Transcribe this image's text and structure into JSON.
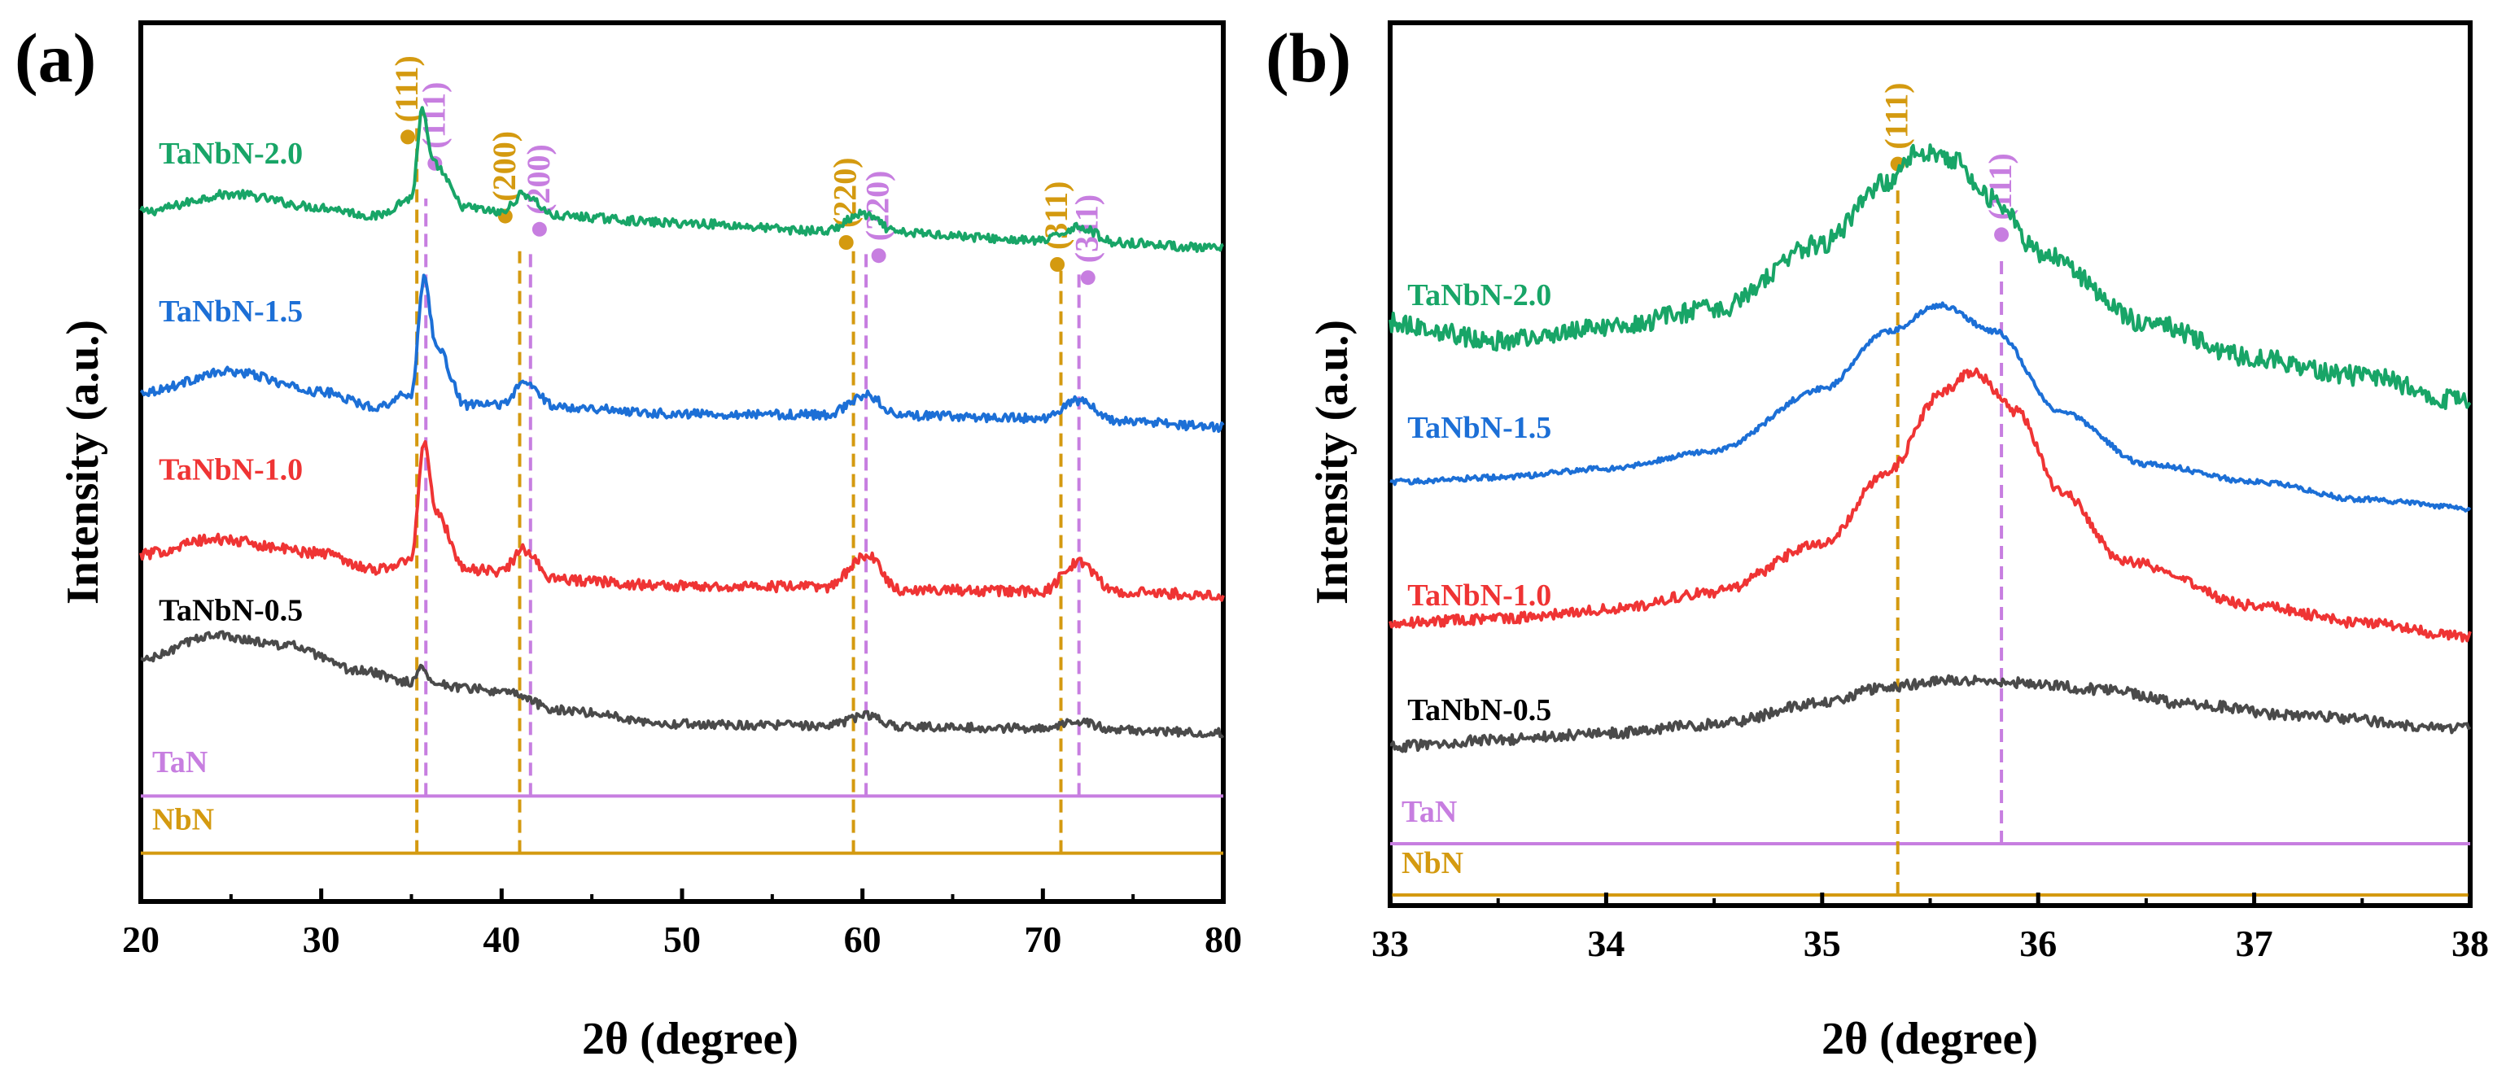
{
  "colors": {
    "green": "#18a567",
    "blue": "#1c6fd6",
    "red": "#ef3434",
    "gray": "#4a4a4a",
    "tan": "#d49a10",
    "violet": "#c77ee0",
    "axis": "#000000"
  },
  "chart_data": [
    {
      "type": "line",
      "panel_label": "(a)",
      "xlabel": "2θ (degree)",
      "ylabel": "Intensity (a.u.)",
      "xlim": [
        20,
        80
      ],
      "xticks": [
        20,
        30,
        40,
        50,
        60,
        70,
        80
      ],
      "xtick_labels": [
        "20",
        "30",
        "40",
        "50",
        "60",
        "70",
        "80"
      ],
      "ylim": [
        0,
        100
      ],
      "series": [
        {
          "name": "TaNbN-2.0",
          "color": "green",
          "baseline": 80,
          "offset": 2.8,
          "noise": 0.5,
          "label_x": 21,
          "label_y": 84,
          "points": [
            [
              20,
              78.5
            ],
            [
              25,
              80.5
            ],
            [
              30,
              79
            ],
            [
              33,
              78
            ],
            [
              35,
              80
            ],
            [
              35.6,
              90
            ],
            [
              36.2,
              84
            ],
            [
              38,
              79
            ],
            [
              40,
              78.4
            ],
            [
              41.2,
              80.5
            ],
            [
              43,
              78
            ],
            [
              50,
              77.2
            ],
            [
              58,
              76.3
            ],
            [
              60,
              78.2
            ],
            [
              62,
              76.1
            ],
            [
              70,
              75.2
            ],
            [
              72,
              76.8
            ],
            [
              74,
              75
            ],
            [
              80,
              74.3
            ]
          ]
        },
        {
          "name": "TaNbN-1.5",
          "color": "blue",
          "baseline": 61,
          "offset": 2.6,
          "noise": 0.5,
          "label_x": 21,
          "label_y": 66,
          "points": [
            [
              20,
              58
            ],
            [
              25,
              60.3
            ],
            [
              30,
              58
            ],
            [
              33,
              56.3
            ],
            [
              35,
              57.8
            ],
            [
              35.7,
              71
            ],
            [
              36.4,
              63
            ],
            [
              38,
              56.5
            ],
            [
              40,
              56.6
            ],
            [
              41.3,
              59
            ],
            [
              43,
              56.3
            ],
            [
              50,
              55.5
            ],
            [
              58,
              55.4
            ],
            [
              60.3,
              57.6
            ],
            [
              62,
              55.3
            ],
            [
              70,
              55
            ],
            [
              72,
              57
            ],
            [
              74,
              54.7
            ],
            [
              80,
              54
            ]
          ]
        },
        {
          "name": "TaNbN-1.0",
          "color": "red",
          "baseline": 40,
          "offset": 2.4,
          "noise": 0.6,
          "label_x": 21,
          "label_y": 48,
          "points": [
            [
              20,
              39.5
            ],
            [
              24,
              41.2
            ],
            [
              30,
              39.7
            ],
            [
              33,
              37.8
            ],
            [
              35,
              38.8
            ],
            [
              35.7,
              52.5
            ],
            [
              36.4,
              44
            ],
            [
              38,
              37.8
            ],
            [
              40,
              37.6
            ],
            [
              41.2,
              40
            ],
            [
              43,
              36.6
            ],
            [
              50,
              35.9
            ],
            [
              58,
              35.8
            ],
            [
              60.3,
              39.3
            ],
            [
              62,
              35.5
            ],
            [
              70,
              35.3
            ],
            [
              72,
              38.6
            ],
            [
              74,
              35.2
            ],
            [
              80,
              34.9
            ]
          ]
        },
        {
          "name": "TaNbN-0.5",
          "color": "gray",
          "baseline": 22,
          "offset": 2.0,
          "noise": 0.5,
          "label_x": 21,
          "label_y": 32,
          "points": [
            [
              20,
              27.5
            ],
            [
              24,
              30.3
            ],
            [
              28,
              29.2
            ],
            [
              32,
              26.3
            ],
            [
              35,
              25
            ],
            [
              35.6,
              26.6
            ],
            [
              36.3,
              24.8
            ],
            [
              38,
              24.3
            ],
            [
              40.5,
              23.7
            ],
            [
              43,
              21.8
            ],
            [
              50,
              20.2
            ],
            [
              58,
              20
            ],
            [
              60.3,
              21.2
            ],
            [
              62,
              19.9
            ],
            [
              70,
              19.7
            ],
            [
              72,
              20.5
            ],
            [
              74,
              19.5
            ],
            [
              80,
              19.2
            ]
          ]
        }
      ],
      "reference_lines": [
        {
          "name": "TaN",
          "color": "violet",
          "y": 12,
          "label_y": 14.7
        },
        {
          "name": "NbN",
          "color": "tan",
          "y": 5.5,
          "label_y": 8.2
        }
      ],
      "annotations": [
        {
          "text": "(111)",
          "color": "tan",
          "x": 35.3,
          "y_from": 5.5,
          "y_to": 88,
          "label_x": 34.8,
          "label_y": 87
        },
        {
          "text": "(111)",
          "color": "violet",
          "x": 35.8,
          "y_from": 12,
          "y_to": 80,
          "label_x": 36.3,
          "label_y": 84
        },
        {
          "text": "(200)",
          "color": "tan",
          "x": 41.0,
          "y_from": 5.5,
          "y_to": 74,
          "label_x": 40.2,
          "label_y": 78
        },
        {
          "text": "(200)",
          "color": "violet",
          "x": 41.6,
          "y_from": 12,
          "y_to": 74,
          "label_x": 42.1,
          "label_y": 76.5
        },
        {
          "text": "(220)",
          "color": "tan",
          "x": 59.5,
          "y_from": 5.5,
          "y_to": 74,
          "label_x": 59.1,
          "label_y": 75
        },
        {
          "text": "(220)",
          "color": "violet",
          "x": 60.2,
          "y_from": 12,
          "y_to": 74,
          "label_x": 60.9,
          "label_y": 73.5
        },
        {
          "text": "(311)",
          "color": "tan",
          "x": 71.0,
          "y_from": 5.5,
          "y_to": 72,
          "label_x": 70.8,
          "label_y": 72.5
        },
        {
          "text": "(311)",
          "color": "violet",
          "x": 72.0,
          "y_from": 12,
          "y_to": 72,
          "label_x": 72.5,
          "label_y": 71
        }
      ]
    },
    {
      "type": "line",
      "panel_label": "(b)",
      "xlabel": "2θ (degree)",
      "ylabel": "Intensity (a.u.)",
      "xlim": [
        33,
        38
      ],
      "xticks": [
        33,
        34,
        35,
        36,
        37,
        38
      ],
      "xtick_labels": [
        "33",
        "34",
        "35",
        "36",
        "37",
        "38"
      ],
      "ylim": [
        0,
        100
      ],
      "series": [
        {
          "name": "TaNbN-2.0",
          "color": "green",
          "baseline": 64,
          "offset": 0,
          "noise": 1.1,
          "label_x": 33.08,
          "label_y": 68,
          "points": [
            [
              33,
              66
            ],
            [
              33.5,
              64
            ],
            [
              34,
              65.5
            ],
            [
              34.5,
              67.5
            ],
            [
              35,
              75
            ],
            [
              35.3,
              82
            ],
            [
              35.45,
              85.5
            ],
            [
              35.6,
              84.5
            ],
            [
              35.8,
              80
            ],
            [
              36,
              74
            ],
            [
              36.5,
              66
            ],
            [
              37,
              62
            ],
            [
              37.5,
              60
            ],
            [
              38,
              57
            ]
          ]
        },
        {
          "name": "TaNbN-1.5",
          "color": "blue",
          "baseline": 45,
          "offset": 0,
          "noise": 0.3,
          "label_x": 33.08,
          "label_y": 53,
          "points": [
            [
              33,
              48
            ],
            [
              33.5,
              48.5
            ],
            [
              34,
              49.5
            ],
            [
              34.5,
              51.5
            ],
            [
              35,
              58.5
            ],
            [
              35.3,
              65
            ],
            [
              35.55,
              68
            ],
            [
              35.8,
              65
            ],
            [
              36.1,
              56
            ],
            [
              36.5,
              50
            ],
            [
              37,
              48
            ],
            [
              37.5,
              46
            ],
            [
              38,
              45
            ]
          ]
        },
        {
          "name": "TaNbN-1.0",
          "color": "red",
          "baseline": 32,
          "offset": 0,
          "noise": 0.6,
          "label_x": 33.08,
          "label_y": 34,
          "points": [
            [
              33,
              32
            ],
            [
              33.5,
              32.5
            ],
            [
              34,
              33.5
            ],
            [
              34.5,
              35.5
            ],
            [
              35,
              41
            ],
            [
              35.3,
              49
            ],
            [
              35.55,
              58
            ],
            [
              35.7,
              60.5
            ],
            [
              35.9,
              56
            ],
            [
              36.1,
              47
            ],
            [
              36.4,
              39
            ],
            [
              37,
              34
            ],
            [
              37.5,
              32
            ],
            [
              38,
              30.5
            ]
          ]
        },
        {
          "name": "TaNbN-0.5",
          "color": "gray",
          "baseline": 18,
          "offset": 0,
          "noise": 0.6,
          "label_x": 33.08,
          "label_y": 21,
          "points": [
            [
              33,
              18
            ],
            [
              33.5,
              18.8
            ],
            [
              34,
              19.5
            ],
            [
              34.5,
              20.5
            ],
            [
              35,
              23
            ],
            [
              35.3,
              24.8
            ],
            [
              35.6,
              25.5
            ],
            [
              35.9,
              25.3
            ],
            [
              36.3,
              24.5
            ],
            [
              36.7,
              22.8
            ],
            [
              37.2,
              21.5
            ],
            [
              38,
              20
            ]
          ]
        }
      ],
      "reference_lines": [
        {
          "name": "TaN",
          "color": "violet",
          "y": 7,
          "label_y": 9.5
        },
        {
          "name": "NbN",
          "color": "tan",
          "y": 1.2,
          "label_y": 3.7
        }
      ],
      "annotations": [
        {
          "text": "(111)",
          "color": "tan",
          "x": 35.35,
          "y_from": 1.2,
          "y_to": 81,
          "label_x": 35.35,
          "label_y": 84
        },
        {
          "text": "(111)",
          "color": "violet",
          "x": 35.83,
          "y_from": 7,
          "y_to": 73,
          "label_x": 35.83,
          "label_y": 76
        }
      ]
    }
  ]
}
